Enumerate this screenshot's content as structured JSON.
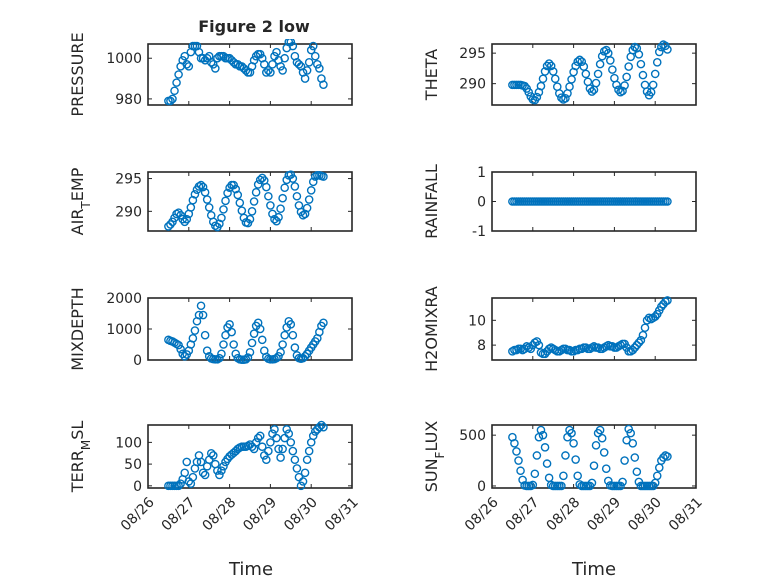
{
  "figure": {
    "title": "Figure 2 low",
    "marker_color": "#0072BD",
    "xlabel": "Time",
    "xticks": [
      "08/26",
      "08/27",
      "08/28",
      "08/29",
      "08/30",
      "08/31"
    ]
  },
  "chart_data": [
    {
      "type": "scatter",
      "title": "Figure 2 low",
      "ylabel": "PRESSURE",
      "ylim": [
        977,
        1007
      ],
      "yticks": [
        980,
        1000
      ],
      "xlim": [
        0,
        5
      ],
      "grid": true,
      "x": [
        0.5,
        0.55,
        0.6,
        0.65,
        0.7,
        0.75,
        0.8,
        0.85,
        0.9,
        0.95,
        1.0,
        1.05,
        1.1,
        1.15,
        1.2,
        1.25,
        1.3,
        1.35,
        1.4,
        1.45,
        1.5,
        1.55,
        1.6,
        1.65,
        1.7,
        1.75,
        1.8,
        1.85,
        1.9,
        1.95,
        2.0,
        2.05,
        2.1,
        2.15,
        2.2,
        2.25,
        2.3,
        2.35,
        2.4,
        2.45,
        2.5,
        2.55,
        2.6,
        2.65,
        2.7,
        2.75,
        2.8,
        2.85,
        2.9,
        2.95,
        3.0,
        3.05,
        3.1,
        3.15,
        3.2,
        3.25,
        3.3,
        3.35,
        3.4,
        3.45,
        3.5,
        3.55,
        3.6,
        3.65,
        3.7,
        3.75,
        3.8,
        3.85,
        3.9,
        3.95,
        4.0,
        4.05,
        4.1,
        4.15,
        4.2,
        4.25,
        4.3
      ],
      "y": [
        979,
        979,
        980,
        984,
        988,
        992,
        996,
        999,
        1001,
        997,
        996,
        1003,
        1006,
        1006,
        1006,
        1003,
        1000,
        1000,
        999,
        1000,
        1001,
        998,
        997,
        995,
        1000,
        1001,
        1001,
        1001,
        1000,
        1000,
        1000,
        999,
        998,
        997,
        997,
        996,
        996,
        995,
        994,
        993,
        993,
        996,
        999,
        1001,
        1002,
        1002,
        1000,
        997,
        993,
        994,
        993,
        997,
        1001,
        1003,
        999,
        996,
        994,
        1000,
        1005,
        1008,
        1008,
        1006,
        1001,
        998,
        997,
        996,
        993,
        990,
        994,
        998,
        1004,
        1006,
        1001,
        997,
        995,
        990,
        987
      ]
    },
    {
      "type": "scatter",
      "ylabel": "THETA",
      "ylim": [
        286.5,
        296.5
      ],
      "yticks": [
        290,
        295
      ],
      "xlim": [
        0,
        5
      ],
      "grid": true,
      "x": [
        0.5,
        0.55,
        0.6,
        0.65,
        0.7,
        0.75,
        0.8,
        0.85,
        0.9,
        0.95,
        1.0,
        1.05,
        1.1,
        1.15,
        1.2,
        1.25,
        1.3,
        1.35,
        1.4,
        1.45,
        1.5,
        1.55,
        1.6,
        1.65,
        1.7,
        1.75,
        1.8,
        1.85,
        1.9,
        1.95,
        2.0,
        2.05,
        2.1,
        2.15,
        2.2,
        2.25,
        2.3,
        2.35,
        2.4,
        2.45,
        2.5,
        2.55,
        2.6,
        2.65,
        2.7,
        2.75,
        2.8,
        2.85,
        2.9,
        2.95,
        3.0,
        3.05,
        3.1,
        3.15,
        3.2,
        3.25,
        3.3,
        3.35,
        3.4,
        3.45,
        3.5,
        3.55,
        3.6,
        3.65,
        3.7,
        3.75,
        3.8,
        3.85,
        3.9,
        3.95,
        4.0,
        4.05,
        4.1,
        4.15,
        4.2,
        4.25,
        4.3
      ],
      "y": [
        289.8,
        289.8,
        289.8,
        289.8,
        289.8,
        289.7,
        289.6,
        289.2,
        288.6,
        287.9,
        287.4,
        287.3,
        287.8,
        288.6,
        289.6,
        290.8,
        292.0,
        292.9,
        293.3,
        292.9,
        292.0,
        290.8,
        289.5,
        288.4,
        287.7,
        287.4,
        287.6,
        288.4,
        289.5,
        290.7,
        291.9,
        292.9,
        293.6,
        293.9,
        293.6,
        292.8,
        291.6,
        290.3,
        289.2,
        288.7,
        289.0,
        290.1,
        291.6,
        293.2,
        294.5,
        295.3,
        295.5,
        295.0,
        293.8,
        292.3,
        290.9,
        289.8,
        289.0,
        288.6,
        288.8,
        289.7,
        291.1,
        292.8,
        294.4,
        295.5,
        296.0,
        295.8,
        294.8,
        293.2,
        291.4,
        289.8,
        288.7,
        288.1,
        288.6,
        289.8,
        291.6,
        293.5,
        295.2,
        296.0,
        296.4,
        296.2,
        295.6
      ]
    },
    {
      "type": "scatter",
      "ylabel": "AIR_TEMP",
      "ylim": [
        287,
        296
      ],
      "yticks": [
        290,
        295
      ],
      "xlim": [
        0,
        5
      ],
      "grid": true,
      "x": [
        0.5,
        0.55,
        0.6,
        0.65,
        0.7,
        0.75,
        0.8,
        0.85,
        0.9,
        0.95,
        1.0,
        1.05,
        1.1,
        1.15,
        1.2,
        1.25,
        1.3,
        1.35,
        1.4,
        1.45,
        1.5,
        1.55,
        1.6,
        1.65,
        1.7,
        1.75,
        1.8,
        1.85,
        1.9,
        1.95,
        2.0,
        2.05,
        2.1,
        2.15,
        2.2,
        2.25,
        2.3,
        2.35,
        2.4,
        2.45,
        2.5,
        2.55,
        2.6,
        2.65,
        2.7,
        2.75,
        2.8,
        2.85,
        2.9,
        2.95,
        3.0,
        3.05,
        3.1,
        3.15,
        3.2,
        3.25,
        3.3,
        3.35,
        3.4,
        3.45,
        3.5,
        3.55,
        3.6,
        3.65,
        3.7,
        3.75,
        3.8,
        3.85,
        3.9,
        3.95,
        4.0,
        4.05,
        4.1,
        4.15,
        4.2,
        4.25,
        4.3
      ],
      "y": [
        287.7,
        288.0,
        288.4,
        289.0,
        289.6,
        289.8,
        289.4,
        288.8,
        288.4,
        288.8,
        289.6,
        290.6,
        291.7,
        292.6,
        293.3,
        293.8,
        294.0,
        293.7,
        292.9,
        291.8,
        290.6,
        289.4,
        288.4,
        287.8,
        287.6,
        288.1,
        289.0,
        290.3,
        291.6,
        292.8,
        293.6,
        294.0,
        294.0,
        293.4,
        292.5,
        291.3,
        290.1,
        289.0,
        288.3,
        288.2,
        288.8,
        290.0,
        291.5,
        292.9,
        294.1,
        294.8,
        295.1,
        294.7,
        293.7,
        292.3,
        290.9,
        289.6,
        288.8,
        288.5,
        289.1,
        290.4,
        292.0,
        293.6,
        294.8,
        295.5,
        295.6,
        295.0,
        293.8,
        292.3,
        290.9,
        289.9,
        289.4,
        289.6,
        290.5,
        291.8,
        293.2,
        294.5,
        295.3,
        295.5,
        295.5,
        295.4,
        295.3
      ]
    },
    {
      "type": "scatter",
      "ylabel": "RAINFALL",
      "ylim": [
        -1,
        1
      ],
      "yticks": [
        -1,
        0,
        1
      ],
      "xlim": [
        0,
        5
      ],
      "grid": true,
      "x": [
        0.5,
        0.55,
        0.6,
        0.65,
        0.7,
        0.75,
        0.8,
        0.85,
        0.9,
        0.95,
        1.0,
        1.05,
        1.1,
        1.15,
        1.2,
        1.25,
        1.3,
        1.35,
        1.4,
        1.45,
        1.5,
        1.55,
        1.6,
        1.65,
        1.7,
        1.75,
        1.8,
        1.85,
        1.9,
        1.95,
        2.0,
        2.05,
        2.1,
        2.15,
        2.2,
        2.25,
        2.3,
        2.35,
        2.4,
        2.45,
        2.5,
        2.55,
        2.6,
        2.65,
        2.7,
        2.75,
        2.8,
        2.85,
        2.9,
        2.95,
        3.0,
        3.05,
        3.1,
        3.15,
        3.2,
        3.25,
        3.3,
        3.35,
        3.4,
        3.45,
        3.5,
        3.55,
        3.6,
        3.65,
        3.7,
        3.75,
        3.8,
        3.85,
        3.9,
        3.95,
        4.0,
        4.05,
        4.1,
        4.15,
        4.2,
        4.25,
        4.3
      ],
      "y": [
        0,
        0,
        0,
        0,
        0,
        0,
        0,
        0,
        0,
        0,
        0,
        0,
        0,
        0,
        0,
        0,
        0,
        0,
        0,
        0,
        0,
        0,
        0,
        0,
        0,
        0,
        0,
        0,
        0,
        0,
        0,
        0,
        0,
        0,
        0,
        0,
        0,
        0,
        0,
        0,
        0,
        0,
        0,
        0,
        0,
        0,
        0,
        0,
        0,
        0,
        0,
        0,
        0,
        0,
        0,
        0,
        0,
        0,
        0,
        0,
        0,
        0,
        0,
        0,
        0,
        0,
        0,
        0,
        0,
        0,
        0,
        0,
        0,
        0,
        0,
        0,
        0
      ]
    },
    {
      "type": "scatter",
      "ylabel": "MIXDEPTH",
      "ylim": [
        0,
        2000
      ],
      "yticks": [
        0,
        1000,
        2000
      ],
      "xlim": [
        0,
        5
      ],
      "grid": true,
      "x": [
        0.5,
        0.55,
        0.6,
        0.65,
        0.7,
        0.75,
        0.8,
        0.85,
        0.9,
        0.95,
        1.0,
        1.05,
        1.1,
        1.15,
        1.2,
        1.25,
        1.3,
        1.35,
        1.4,
        1.45,
        1.5,
        1.55,
        1.6,
        1.65,
        1.7,
        1.75,
        1.8,
        1.85,
        1.9,
        1.95,
        2.0,
        2.05,
        2.1,
        2.15,
        2.2,
        2.25,
        2.3,
        2.35,
        2.4,
        2.45,
        2.5,
        2.55,
        2.6,
        2.65,
        2.7,
        2.75,
        2.8,
        2.85,
        2.9,
        2.95,
        3.0,
        3.05,
        3.1,
        3.15,
        3.2,
        3.25,
        3.3,
        3.35,
        3.4,
        3.45,
        3.5,
        3.55,
        3.6,
        3.65,
        3.7,
        3.75,
        3.8,
        3.85,
        3.9,
        3.95,
        4.0,
        4.05,
        4.1,
        4.15,
        4.2,
        4.25,
        4.3
      ],
      "y": [
        650,
        620,
        600,
        560,
        520,
        480,
        350,
        200,
        120,
        180,
        300,
        500,
        700,
        950,
        1250,
        1450,
        1750,
        1450,
        800,
        300,
        120,
        50,
        30,
        20,
        20,
        60,
        200,
        500,
        800,
        1050,
        1150,
        900,
        500,
        200,
        60,
        20,
        10,
        10,
        20,
        80,
        250,
        550,
        850,
        1100,
        1200,
        1000,
        650,
        300,
        100,
        40,
        20,
        20,
        30,
        60,
        120,
        250,
        500,
        800,
        1050,
        1250,
        1150,
        800,
        400,
        150,
        60,
        40,
        60,
        120,
        200,
        300,
        400,
        500,
        600,
        700,
        900,
        1100,
        1200
      ]
    },
    {
      "type": "scatter",
      "ylabel": "H2OMIXRA",
      "ylim": [
        6.8,
        11.8
      ],
      "yticks": [
        8,
        10
      ],
      "xlim": [
        0,
        5
      ],
      "grid": true,
      "x": [
        0.5,
        0.55,
        0.6,
        0.65,
        0.7,
        0.75,
        0.8,
        0.85,
        0.9,
        0.95,
        1.0,
        1.05,
        1.1,
        1.15,
        1.2,
        1.25,
        1.3,
        1.35,
        1.4,
        1.45,
        1.5,
        1.55,
        1.6,
        1.65,
        1.7,
        1.75,
        1.8,
        1.85,
        1.9,
        1.95,
        2.0,
        2.05,
        2.1,
        2.15,
        2.2,
        2.25,
        2.3,
        2.35,
        2.4,
        2.45,
        2.5,
        2.55,
        2.6,
        2.65,
        2.7,
        2.75,
        2.8,
        2.85,
        2.9,
        2.95,
        3.0,
        3.05,
        3.1,
        3.15,
        3.2,
        3.25,
        3.3,
        3.35,
        3.4,
        3.45,
        3.5,
        3.55,
        3.6,
        3.65,
        3.7,
        3.75,
        3.8,
        3.85,
        3.9,
        3.95,
        4.0,
        4.05,
        4.1,
        4.15,
        4.2,
        4.25,
        4.3
      ],
      "y": [
        7.5,
        7.6,
        7.6,
        7.7,
        7.7,
        7.6,
        7.7,
        7.9,
        7.8,
        7.7,
        8.0,
        8.2,
        8.3,
        8.0,
        7.4,
        7.3,
        7.3,
        7.5,
        7.7,
        7.8,
        7.7,
        7.6,
        7.5,
        7.5,
        7.6,
        7.7,
        7.7,
        7.6,
        7.6,
        7.5,
        7.5,
        7.6,
        7.6,
        7.7,
        7.7,
        7.8,
        7.8,
        7.7,
        7.7,
        7.8,
        7.9,
        7.8,
        7.8,
        7.7,
        7.7,
        7.8,
        7.9,
        8.0,
        7.9,
        7.9,
        7.8,
        7.8,
        7.9,
        8.0,
        8.1,
        8.1,
        7.8,
        7.5,
        7.5,
        7.6,
        7.8,
        8.0,
        8.2,
        8.4,
        8.8,
        9.4,
        10.0,
        10.2,
        10.1,
        10.2,
        10.3,
        10.5,
        10.8,
        11.1,
        11.3,
        11.5,
        11.6
      ]
    },
    {
      "type": "scatter",
      "ylabel": "TERR_MSL",
      "ylim": [
        -5,
        140
      ],
      "yticks": [
        0,
        50,
        100
      ],
      "xlim": [
        0,
        5
      ],
      "grid": true,
      "x": [
        0.5,
        0.55,
        0.6,
        0.65,
        0.7,
        0.75,
        0.8,
        0.85,
        0.9,
        0.95,
        1.0,
        1.05,
        1.1,
        1.15,
        1.2,
        1.25,
        1.3,
        1.35,
        1.4,
        1.45,
        1.5,
        1.55,
        1.6,
        1.65,
        1.7,
        1.75,
        1.8,
        1.85,
        1.9,
        1.95,
        2.0,
        2.05,
        2.1,
        2.15,
        2.2,
        2.25,
        2.3,
        2.35,
        2.4,
        2.45,
        2.5,
        2.55,
        2.6,
        2.65,
        2.7,
        2.75,
        2.8,
        2.85,
        2.9,
        2.95,
        3.0,
        3.05,
        3.1,
        3.15,
        3.2,
        3.25,
        3.3,
        3.35,
        3.4,
        3.45,
        3.5,
        3.55,
        3.6,
        3.65,
        3.7,
        3.75,
        3.8,
        3.85,
        3.9,
        3.95,
        4.0,
        4.05,
        4.1,
        4.15,
        4.2,
        4.25,
        4.3
      ],
      "y": [
        0,
        0,
        0,
        0,
        0,
        0,
        5,
        15,
        30,
        55,
        10,
        5,
        20,
        40,
        55,
        70,
        55,
        30,
        25,
        45,
        60,
        75,
        70,
        50,
        35,
        25,
        35,
        45,
        55,
        62,
        68,
        72,
        76,
        80,
        85,
        88,
        90,
        90,
        90,
        92,
        95,
        90,
        85,
        100,
        110,
        115,
        90,
        70,
        60,
        80,
        100,
        120,
        130,
        110,
        85,
        65,
        85,
        110,
        130,
        120,
        100,
        80,
        60,
        40,
        20,
        0,
        10,
        30,
        60,
        80,
        100,
        115,
        125,
        130,
        135,
        140,
        135
      ]
    },
    {
      "type": "scatter",
      "ylabel": "SUN_FLUX",
      "ylim": [
        -20,
        600
      ],
      "yticks": [
        0,
        500
      ],
      "xlim": [
        0,
        5
      ],
      "grid": true,
      "x": [
        0.5,
        0.55,
        0.6,
        0.65,
        0.7,
        0.75,
        0.8,
        0.85,
        0.9,
        0.95,
        1.0,
        1.05,
        1.1,
        1.15,
        1.2,
        1.25,
        1.3,
        1.35,
        1.4,
        1.45,
        1.5,
        1.55,
        1.6,
        1.65,
        1.7,
        1.75,
        1.8,
        1.85,
        1.9,
        1.95,
        2.0,
        2.05,
        2.1,
        2.15,
        2.2,
        2.25,
        2.3,
        2.35,
        2.4,
        2.45,
        2.5,
        2.55,
        2.6,
        2.65,
        2.7,
        2.75,
        2.8,
        2.85,
        2.9,
        2.95,
        3.0,
        3.05,
        3.1,
        3.15,
        3.2,
        3.25,
        3.3,
        3.35,
        3.4,
        3.45,
        3.5,
        3.55,
        3.6,
        3.65,
        3.7,
        3.75,
        3.8,
        3.85,
        3.9,
        3.95,
        4.0,
        4.05,
        4.1,
        4.15,
        4.2,
        4.25,
        4.3
      ],
      "y": [
        480,
        420,
        340,
        250,
        150,
        60,
        5,
        0,
        0,
        0,
        10,
        120,
        300,
        480,
        550,
        500,
        380,
        220,
        80,
        10,
        0,
        0,
        0,
        0,
        0,
        100,
        300,
        480,
        550,
        520,
        420,
        260,
        100,
        15,
        0,
        0,
        0,
        0,
        0,
        30,
        200,
        400,
        520,
        550,
        470,
        330,
        170,
        50,
        5,
        0,
        0,
        0,
        0,
        0,
        40,
        250,
        450,
        560,
        520,
        420,
        280,
        140,
        40,
        0,
        0,
        0,
        0,
        0,
        0,
        0,
        30,
        100,
        180,
        250,
        280,
        300,
        290
      ]
    }
  ]
}
